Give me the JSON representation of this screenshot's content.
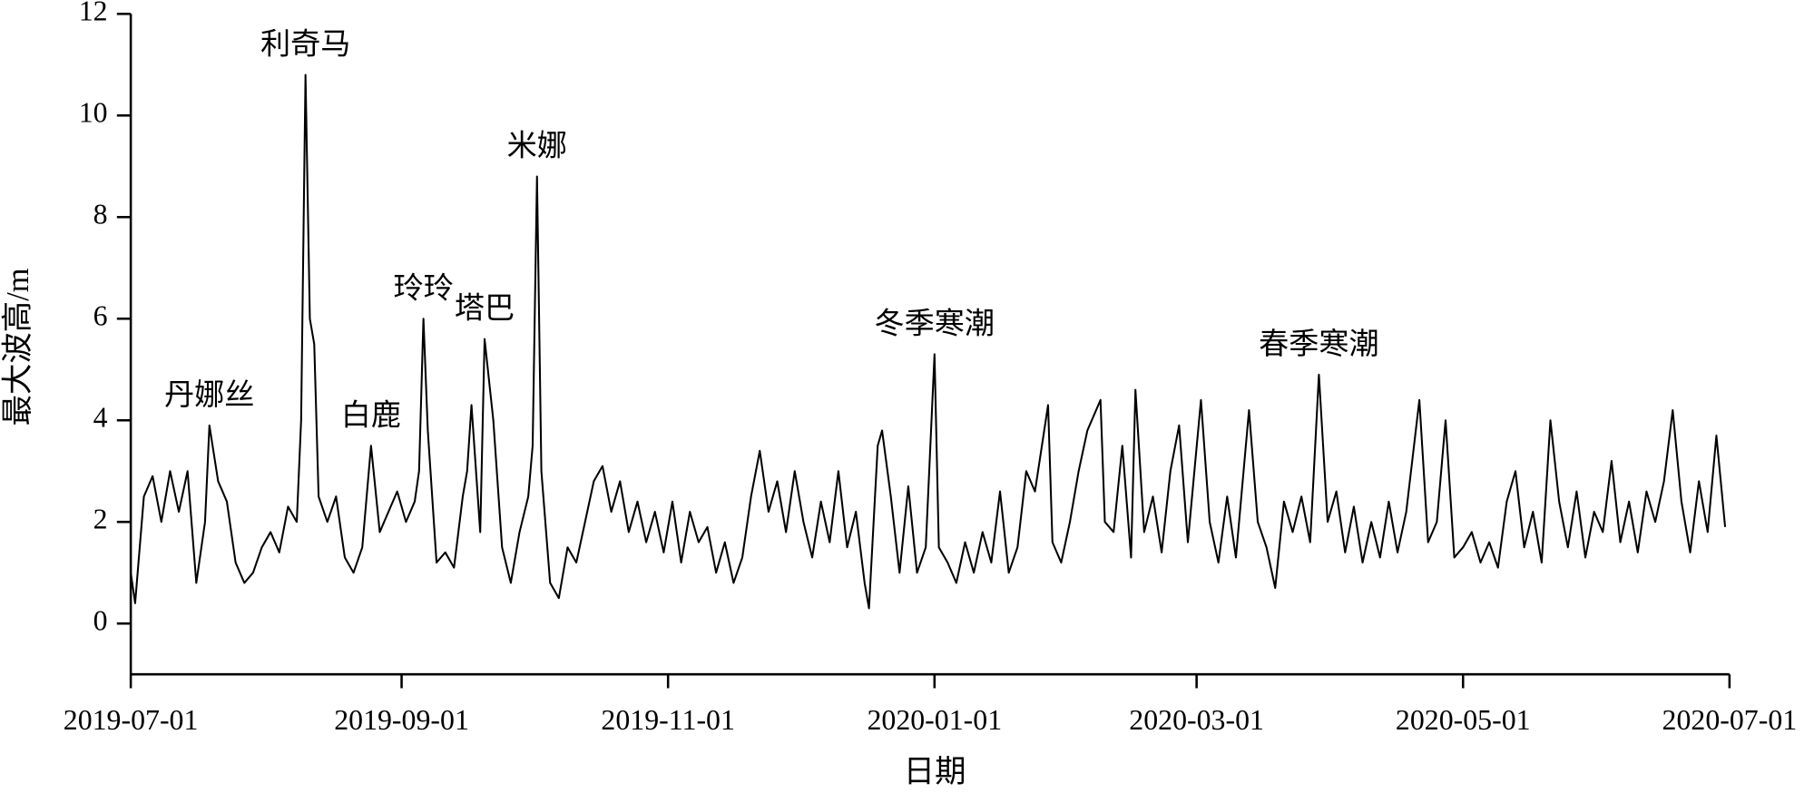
{
  "chart_data": {
    "type": "line",
    "x_label": "日期",
    "y_label": "最大波高/m",
    "xlim": [
      "2019-07-01",
      "2020-07-01"
    ],
    "xticks": [
      "2019-07-01",
      "2019-09-01",
      "2019-11-01",
      "2020-01-01",
      "2020-03-01",
      "2020-05-01",
      "2020-07-01"
    ],
    "ylim": [
      -1,
      12
    ],
    "yticks": [
      0,
      2,
      4,
      6,
      8,
      10,
      12
    ],
    "annotations": [
      {
        "text": "丹娜丝",
        "x": "2019-07-19"
      },
      {
        "text": "利奇马",
        "x": "2019-08-10"
      },
      {
        "text": "白鹿",
        "x": "2019-08-25"
      },
      {
        "text": "玲玲",
        "x": "2019-09-06"
      },
      {
        "text": "塔巴",
        "x": "2019-09-20"
      },
      {
        "text": "米娜",
        "x": "2019-10-02"
      },
      {
        "text": "冬季寒潮",
        "x": "2020-01-01"
      },
      {
        "text": "春季寒潮",
        "x": "2020-03-29"
      }
    ],
    "x": [
      "2019-07-01",
      "2019-07-02",
      "2019-07-04",
      "2019-07-06",
      "2019-07-08",
      "2019-07-10",
      "2019-07-12",
      "2019-07-14",
      "2019-07-16",
      "2019-07-18",
      "2019-07-19",
      "2019-07-21",
      "2019-07-23",
      "2019-07-25",
      "2019-07-27",
      "2019-07-29",
      "2019-07-31",
      "2019-08-02",
      "2019-08-04",
      "2019-08-06",
      "2019-08-08",
      "2019-08-09",
      "2019-08-10",
      "2019-08-11",
      "2019-08-12",
      "2019-08-13",
      "2019-08-15",
      "2019-08-17",
      "2019-08-19",
      "2019-08-21",
      "2019-08-23",
      "2019-08-25",
      "2019-08-27",
      "2019-08-29",
      "2019-08-31",
      "2019-09-02",
      "2019-09-04",
      "2019-09-05",
      "2019-09-06",
      "2019-09-07",
      "2019-09-09",
      "2019-09-11",
      "2019-09-13",
      "2019-09-15",
      "2019-09-16",
      "2019-09-17",
      "2019-09-19",
      "2019-09-20",
      "2019-09-22",
      "2019-09-24",
      "2019-09-26",
      "2019-09-28",
      "2019-09-30",
      "2019-10-01",
      "2019-10-02",
      "2019-10-03",
      "2019-10-05",
      "2019-10-07",
      "2019-10-09",
      "2019-10-11",
      "2019-10-13",
      "2019-10-15",
      "2019-10-17",
      "2019-10-19",
      "2019-10-21",
      "2019-10-23",
      "2019-10-25",
      "2019-10-27",
      "2019-10-29",
      "2019-10-31",
      "2019-11-02",
      "2019-11-04",
      "2019-11-06",
      "2019-11-08",
      "2019-11-10",
      "2019-11-12",
      "2019-11-14",
      "2019-11-16",
      "2019-11-18",
      "2019-11-20",
      "2019-11-22",
      "2019-11-24",
      "2019-11-26",
      "2019-11-28",
      "2019-11-30",
      "2019-12-02",
      "2019-12-04",
      "2019-12-06",
      "2019-12-08",
      "2019-12-10",
      "2019-12-12",
      "2019-12-14",
      "2019-12-16",
      "2019-12-17",
      "2019-12-19",
      "2019-12-20",
      "2019-12-22",
      "2019-12-24",
      "2019-12-26",
      "2019-12-28",
      "2019-12-30",
      "2020-01-01",
      "2020-01-02",
      "2020-01-04",
      "2020-01-06",
      "2020-01-08",
      "2020-01-10",
      "2020-01-12",
      "2020-01-14",
      "2020-01-16",
      "2020-01-18",
      "2020-01-20",
      "2020-01-22",
      "2020-01-24",
      "2020-01-27",
      "2020-01-28",
      "2020-01-30",
      "2020-02-01",
      "2020-02-03",
      "2020-02-05",
      "2020-02-08",
      "2020-02-09",
      "2020-02-11",
      "2020-02-13",
      "2020-02-15",
      "2020-02-16",
      "2020-02-18",
      "2020-02-20",
      "2020-02-22",
      "2020-02-24",
      "2020-02-26",
      "2020-02-28",
      "2020-03-02",
      "2020-03-04",
      "2020-03-06",
      "2020-03-08",
      "2020-03-10",
      "2020-03-13",
      "2020-03-15",
      "2020-03-17",
      "2020-03-19",
      "2020-03-21",
      "2020-03-23",
      "2020-03-25",
      "2020-03-27",
      "2020-03-29",
      "2020-03-31",
      "2020-04-02",
      "2020-04-04",
      "2020-04-06",
      "2020-04-08",
      "2020-04-10",
      "2020-04-12",
      "2020-04-14",
      "2020-04-16",
      "2020-04-18",
      "2020-04-21",
      "2020-04-23",
      "2020-04-25",
      "2020-04-27",
      "2020-04-29",
      "2020-05-01",
      "2020-05-03",
      "2020-05-05",
      "2020-05-07",
      "2020-05-09",
      "2020-05-11",
      "2020-05-13",
      "2020-05-15",
      "2020-05-17",
      "2020-05-19",
      "2020-05-21",
      "2020-05-23",
      "2020-05-25",
      "2020-05-27",
      "2020-05-29",
      "2020-05-31",
      "2020-06-02",
      "2020-06-04",
      "2020-06-06",
      "2020-06-08",
      "2020-06-10",
      "2020-06-12",
      "2020-06-14",
      "2020-06-16",
      "2020-06-18",
      "2020-06-20",
      "2020-06-22",
      "2020-06-24",
      "2020-06-26",
      "2020-06-28",
      "2020-06-30"
    ],
    "series": [
      {
        "name": "最大波高",
        "color": "#000000",
        "values": [
          1.0,
          0.4,
          2.5,
          2.9,
          2.0,
          3.0,
          2.2,
          3.0,
          0.8,
          2.0,
          3.9,
          2.8,
          2.4,
          1.2,
          0.8,
          1.0,
          1.5,
          1.8,
          1.4,
          2.3,
          2.0,
          4.0,
          10.8,
          6.0,
          5.5,
          2.5,
          2.0,
          2.5,
          1.3,
          1.0,
          1.5,
          3.5,
          1.8,
          2.2,
          2.6,
          2.0,
          2.4,
          3.0,
          6.0,
          3.8,
          1.2,
          1.4,
          1.1,
          2.5,
          3.0,
          4.3,
          1.8,
          5.6,
          4.0,
          1.5,
          0.8,
          1.8,
          2.5,
          3.5,
          8.8,
          3.0,
          0.8,
          0.5,
          1.5,
          1.2,
          2.0,
          2.8,
          3.1,
          2.2,
          2.8,
          1.8,
          2.4,
          1.6,
          2.2,
          1.4,
          2.4,
          1.2,
          2.2,
          1.6,
          1.9,
          1.0,
          1.6,
          0.8,
          1.3,
          2.5,
          3.4,
          2.2,
          2.8,
          1.8,
          3.0,
          2.0,
          1.3,
          2.4,
          1.6,
          3.0,
          1.5,
          2.2,
          0.8,
          0.3,
          3.5,
          3.8,
          2.5,
          1.0,
          2.7,
          1.0,
          1.5,
          5.3,
          1.5,
          1.2,
          0.8,
          1.6,
          1.0,
          1.8,
          1.2,
          2.6,
          1.0,
          1.5,
          3.0,
          2.6,
          4.3,
          1.6,
          1.2,
          2.0,
          3.0,
          3.8,
          4.4,
          2.0,
          1.8,
          3.5,
          1.3,
          4.6,
          1.8,
          2.5,
          1.4,
          3.0,
          3.9,
          1.6,
          4.4,
          2.0,
          1.2,
          2.5,
          1.3,
          4.2,
          2.0,
          1.5,
          0.7,
          2.4,
          1.8,
          2.5,
          1.6,
          4.9,
          2.0,
          2.6,
          1.4,
          2.3,
          1.2,
          2.0,
          1.3,
          2.4,
          1.4,
          2.2,
          4.4,
          1.6,
          2.0,
          4.0,
          1.3,
          1.5,
          1.8,
          1.2,
          1.6,
          1.1,
          2.4,
          3.0,
          1.5,
          2.2,
          1.2,
          4.0,
          2.4,
          1.5,
          2.6,
          1.3,
          2.2,
          1.8,
          3.2,
          1.6,
          2.4,
          1.4,
          2.6,
          2.0,
          2.8,
          4.2,
          2.4,
          1.4,
          2.8,
          1.8,
          3.7,
          1.9
        ]
      }
    ]
  }
}
